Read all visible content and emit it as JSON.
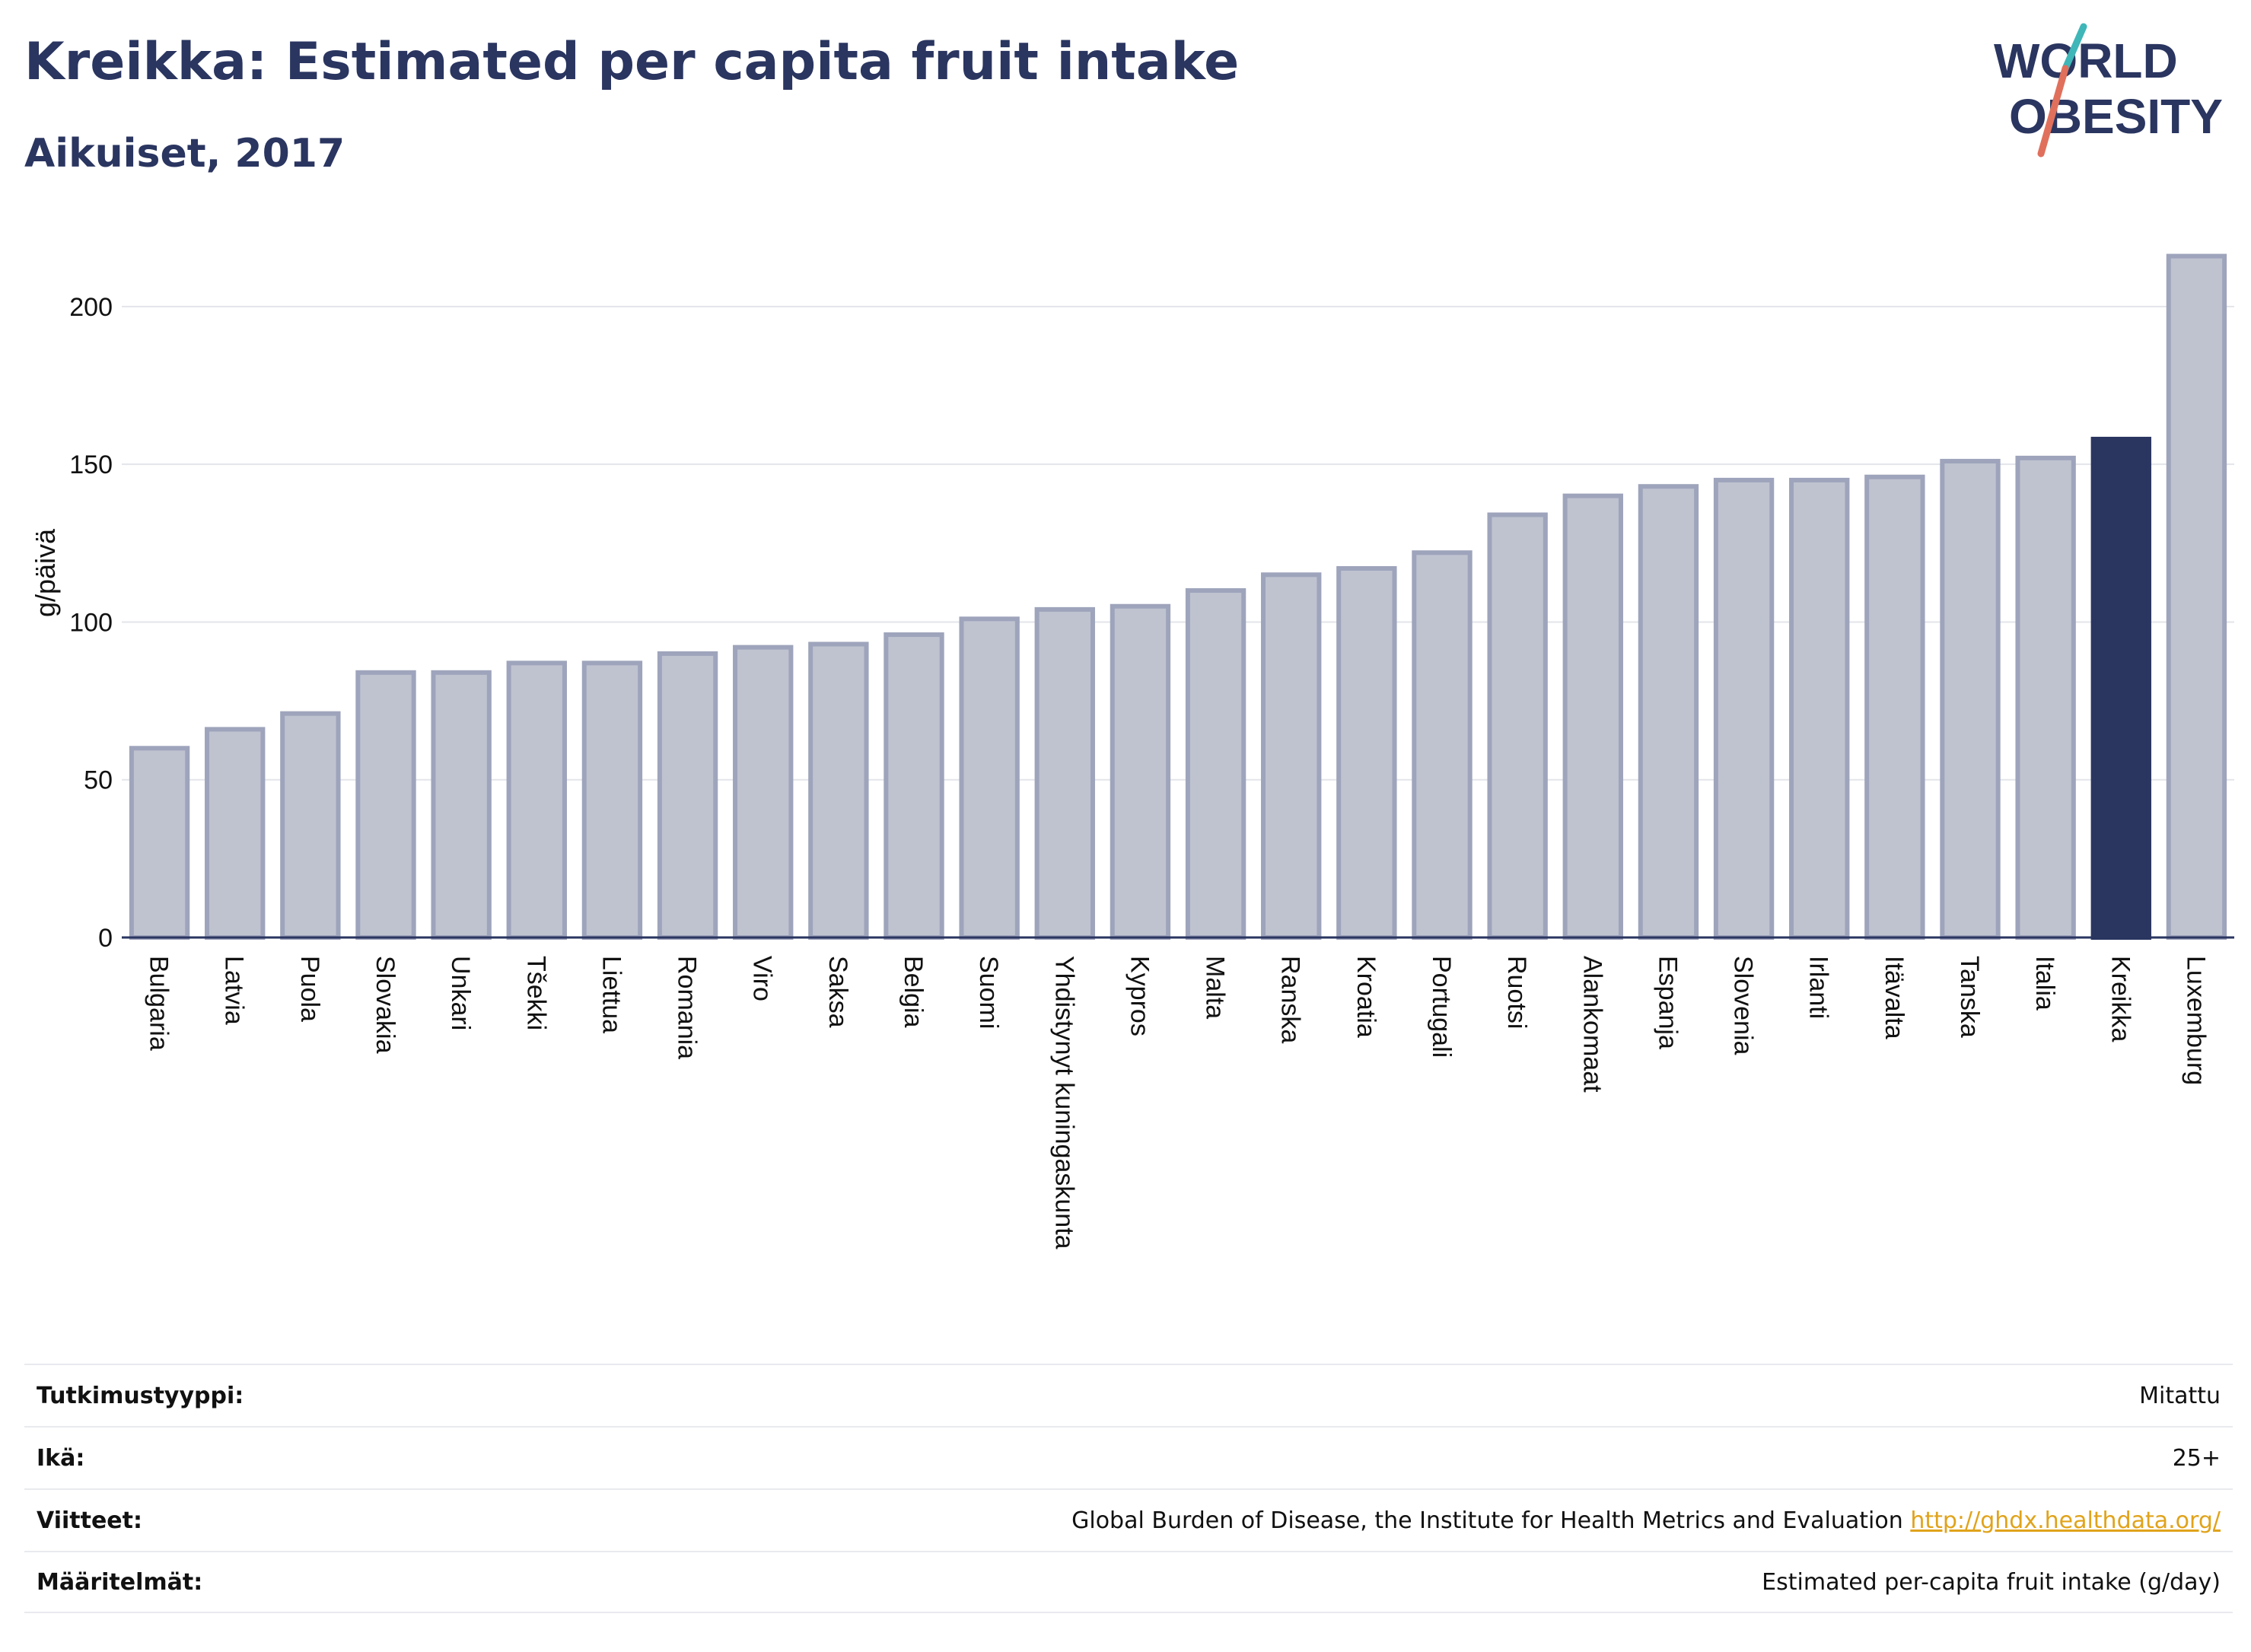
{
  "header": {
    "title": "Kreikka: Estimated per capita fruit intake",
    "subtitle": "Aikuiset, 2017"
  },
  "logo": {
    "line1": "WORLD",
    "line2": "OBESITY"
  },
  "colors": {
    "highlight": "#2a3560",
    "bar_fill": "#bfc3d0",
    "bar_stroke": "#9ea4bb",
    "grid": "#e3e5ea",
    "logo_teal": "#3fb6b8",
    "logo_coral": "#e0705c"
  },
  "chart_data": {
    "type": "bar",
    "ylabel": "g/päivä",
    "ylim": [
      0,
      220
    ],
    "yticks": [
      0,
      50,
      100,
      150,
      200
    ],
    "grid": true,
    "highlight": "Kreikka",
    "categories": [
      "Bulgaria",
      "Latvia",
      "Puola",
      "Slovakia",
      "Unkari",
      "Tšekki",
      "Liettua",
      "Romania",
      "Viro",
      "Saksa",
      "Belgia",
      "Suomi",
      "Yhdistynyt kuningaskunta",
      "Kypros",
      "Malta",
      "Ranska",
      "Kroatia",
      "Portugali",
      "Ruotsi",
      "Alankomaat",
      "Espanja",
      "Slovenia",
      "Irlanti",
      "Itävalta",
      "Tanska",
      "Italia",
      "Kreikka",
      "Luxemburg"
    ],
    "values": [
      60,
      66,
      71,
      84,
      84,
      87,
      87,
      90,
      92,
      93,
      96,
      101,
      104,
      105,
      110,
      115,
      117,
      122,
      134,
      140,
      143,
      145,
      145,
      146,
      151,
      152,
      158,
      216
    ]
  },
  "meta": [
    {
      "label": "Tutkimustyyppi:",
      "value": "Mitattu",
      "link": ""
    },
    {
      "label": "Ikä:",
      "value": "25+",
      "link": ""
    },
    {
      "label": "Viitteet:",
      "value": "Global Burden of Disease, the Institute for Health Metrics and Evaluation",
      "link": "http://ghdx.healthdata.org/"
    },
    {
      "label": "Määritelmät:",
      "value": "Estimated per-capita fruit intake (g/day)",
      "link": ""
    }
  ]
}
